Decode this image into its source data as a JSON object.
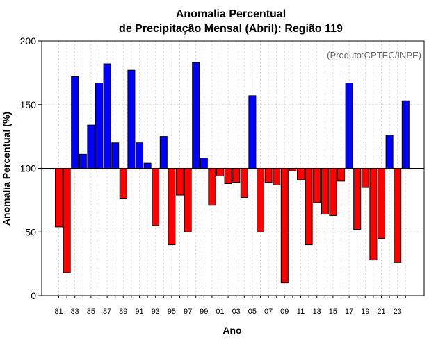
{
  "chart_data": {
    "type": "bar",
    "title": [
      "Anomalia Percentual",
      "de Precipitação Mensal (Abril): Região 119"
    ],
    "xlabel": "Ano",
    "ylabel": "Anomalia Percentual (%)",
    "credit": "(Produto:CPTEC/INPE)",
    "ylim": [
      0,
      200
    ],
    "yticks": [
      "0",
      "50",
      "100",
      "150",
      "200"
    ],
    "baseline": 100,
    "grid": true,
    "colors": {
      "above": "#0000ff",
      "below": "#ff0000",
      "edge": "#000000",
      "grid": "#d9d9d9"
    },
    "categories": [
      "81",
      "82",
      "83",
      "84",
      "85",
      "86",
      "87",
      "88",
      "89",
      "90",
      "91",
      "92",
      "93",
      "94",
      "95",
      "96",
      "97",
      "98",
      "99",
      "00",
      "01",
      "02",
      "03",
      "04",
      "05",
      "06",
      "07",
      "08",
      "09",
      "10",
      "11",
      "12",
      "13",
      "14",
      "15",
      "16",
      "17",
      "18",
      "19",
      "20",
      "21",
      "22",
      "23",
      "24"
    ],
    "xtick_labels": [
      "81",
      "83",
      "85",
      "87",
      "89",
      "91",
      "93",
      "95",
      "97",
      "99",
      "01",
      "03",
      "05",
      "07",
      "09",
      "11",
      "13",
      "15",
      "17",
      "19",
      "21",
      "23"
    ],
    "values": [
      54,
      18,
      172,
      111,
      134,
      167,
      182,
      120,
      76,
      177,
      120,
      104,
      55,
      125,
      40,
      79,
      50,
      183,
      108,
      71,
      94,
      88,
      89,
      77,
      157,
      50,
      89,
      87,
      10,
      98,
      91,
      40,
      73,
      64,
      63,
      90,
      167,
      52,
      85,
      28,
      45,
      126,
      26,
      153
    ]
  }
}
